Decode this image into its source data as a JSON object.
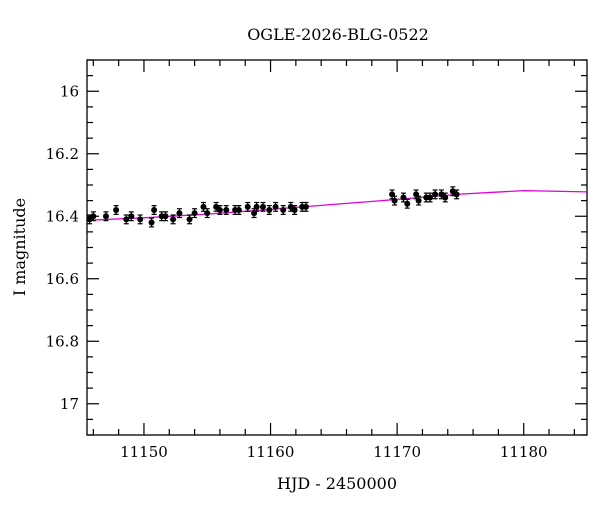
{
  "chart_data": {
    "type": "scatter",
    "title": "OGLE-2026-BLG-0522",
    "xlabel": "HJD - 2450000",
    "ylabel": "I magnitude",
    "xlim": [
      11145.5,
      11185
    ],
    "ylim": [
      17.1,
      15.9
    ],
    "y_inverted": true,
    "grid": false,
    "x_ticks": [
      11150,
      11160,
      11170,
      11180
    ],
    "x_tick_labels": [
      "11150",
      "11160",
      "11170",
      "11180"
    ],
    "y_ticks": [
      16,
      16.2,
      16.4,
      16.6,
      16.8,
      17
    ],
    "y_tick_labels": [
      "16",
      "16.2",
      "16.4",
      "16.6",
      "16.8",
      "17"
    ],
    "colors": {
      "points": "#000000",
      "model": "#e000e0"
    },
    "series": [
      {
        "kind": "points_with_errorbars",
        "x": [
          11145.7,
          11146.0,
          11147.0,
          11147.8,
          11148.6,
          11149.0,
          11149.7,
          11150.6,
          11150.8,
          11151.4,
          11151.7,
          11152.3,
          11152.8,
          11153.6,
          11154.0,
          11154.7,
          11155.0,
          11155.7,
          11156.0,
          11156.5,
          11157.2,
          11157.5,
          11158.2,
          11158.7,
          11158.9,
          11159.4,
          11159.9,
          11160.4,
          11161.0,
          11161.6,
          11161.9,
          11162.5,
          11162.8,
          11169.6,
          11169.8,
          11170.5,
          11170.8,
          11171.5,
          11171.7,
          11172.3,
          11172.6,
          11173.0,
          11173.5,
          11173.8,
          11174.4,
          11174.7
        ],
        "y": [
          16.41,
          16.4,
          16.4,
          16.38,
          16.41,
          16.4,
          16.41,
          16.42,
          16.38,
          16.4,
          16.4,
          16.41,
          16.39,
          16.41,
          16.39,
          16.37,
          16.39,
          16.37,
          16.38,
          16.38,
          16.38,
          16.38,
          16.37,
          16.39,
          16.37,
          16.37,
          16.38,
          16.37,
          16.38,
          16.37,
          16.38,
          16.37,
          16.37,
          16.33,
          16.35,
          16.34,
          16.36,
          16.33,
          16.35,
          16.34,
          16.34,
          16.33,
          16.33,
          16.34,
          16.32,
          16.33
        ],
        "yerr": 0.014
      },
      {
        "kind": "model_curve",
        "x": [
          11145.5,
          11150,
          11155,
          11160,
          11165,
          11170,
          11175,
          11180,
          11185
        ],
        "y": [
          16.413,
          16.405,
          16.393,
          16.378,
          16.362,
          16.346,
          16.329,
          16.318,
          16.322
        ]
      }
    ]
  }
}
